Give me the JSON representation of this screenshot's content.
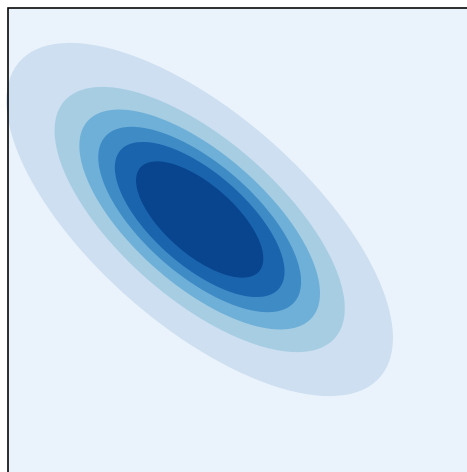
{
  "chart_data": {
    "type": "contour",
    "title": "",
    "xlabel": "",
    "ylabel": "",
    "xlim": [
      -3,
      3
    ],
    "ylim": [
      -3,
      3
    ],
    "grid": false,
    "legend": "none",
    "distribution": {
      "kind": "bivariate-normal",
      "mean": [
        -0.5,
        0.3
      ],
      "cov": [
        [
          1.0,
          -0.6
        ],
        [
          -0.6,
          0.8
        ]
      ]
    },
    "levels": [
      0.0,
      0.01,
      0.04,
      0.07,
      0.1,
      0.13,
      0.17
    ],
    "colors": [
      "#eaf2fb",
      "#cddff0",
      "#a7cde3",
      "#6fb0d8",
      "#3f8bc5",
      "#1a64ae",
      "#08458e"
    ]
  },
  "frame": {
    "color": "#000000",
    "background": "#eaf2fb"
  }
}
